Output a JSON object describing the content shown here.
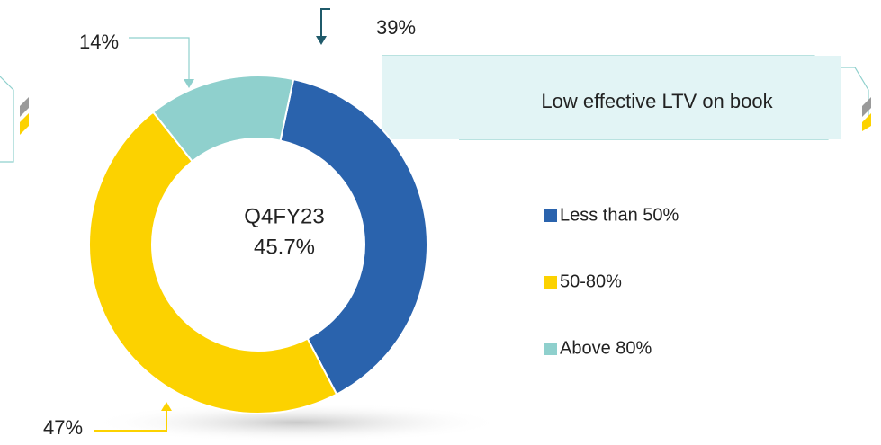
{
  "chart_data": {
    "type": "donut",
    "categories": [
      "Less than 50%",
      "50-80%",
      "Above 80%"
    ],
    "values": [
      39,
      47,
      14
    ],
    "value_labels": [
      "39%",
      "47%",
      "14%"
    ],
    "colors": [
      "#2a63ad",
      "#fcd200",
      "#8fd0cd"
    ],
    "center_title": "Q4FY23",
    "center_value": "45.7%",
    "annotation": "Low effective LTV on book",
    "legend": "right"
  }
}
